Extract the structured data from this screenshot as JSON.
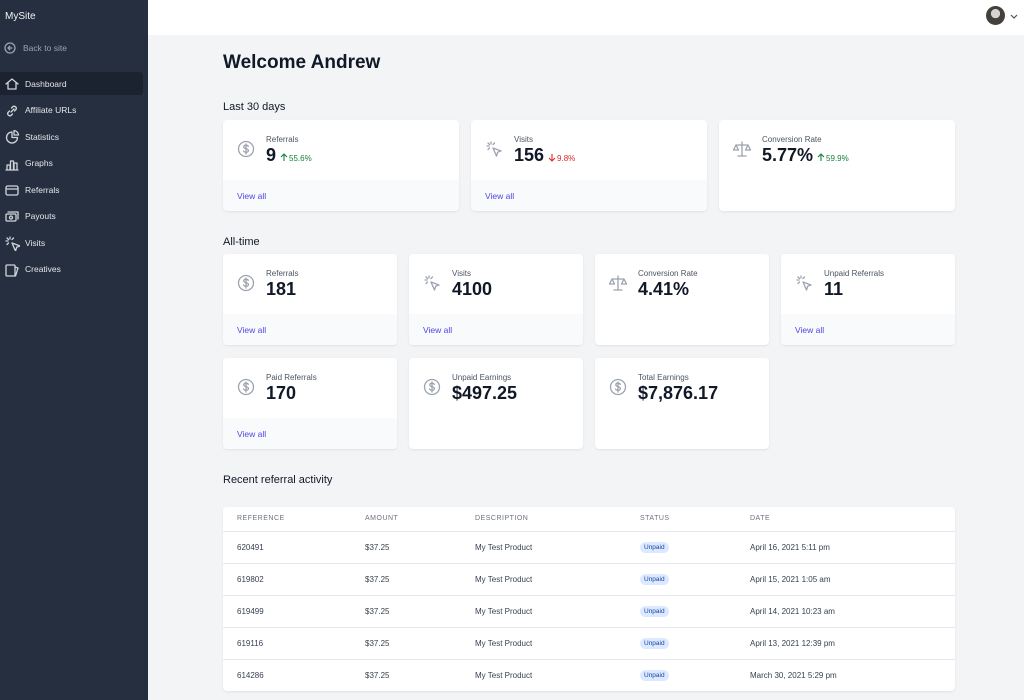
{
  "sidebar": {
    "site_name": "MySite",
    "back_link": "Back to site",
    "active_nav": 0,
    "nav": [
      {
        "label": "Dashboard",
        "icon": "home"
      },
      {
        "label": "Affiliate URLs",
        "icon": "link"
      },
      {
        "label": "Statistics",
        "icon": "pie"
      },
      {
        "label": "Graphs",
        "icon": "bars"
      },
      {
        "label": "Referrals",
        "icon": "card"
      },
      {
        "label": "Payouts",
        "icon": "cash"
      },
      {
        "label": "Visits",
        "icon": "cursor"
      },
      {
        "label": "Creatives",
        "icon": "image"
      }
    ]
  },
  "header": {
    "title": "Welcome Andrew"
  },
  "last_30_days": {
    "title": "Last 30 days",
    "cards": [
      {
        "label": "Referrals",
        "value": "9",
        "change": "55.6%",
        "trend": "up",
        "icon": "dollar",
        "link": "View all"
      },
      {
        "label": "Visits",
        "value": "156",
        "change": "9.8%",
        "trend": "down",
        "icon": "cursor",
        "link": "View all"
      },
      {
        "label": "Conversion Rate",
        "value": "5.77%",
        "change": "59.9%",
        "trend": "up",
        "icon": "scale"
      }
    ]
  },
  "all_time": {
    "title": "All-time",
    "cards": [
      {
        "label": "Referrals",
        "value": "181",
        "icon": "dollar",
        "link": "View all"
      },
      {
        "label": "Visits",
        "value": "4100",
        "icon": "cursor",
        "link": "View all"
      },
      {
        "label": "Conversion Rate",
        "value": "4.41%",
        "icon": "scale"
      },
      {
        "label": "Unpaid Referrals",
        "value": "11",
        "icon": "cursor",
        "link": "View all"
      },
      {
        "label": "Paid Referrals",
        "value": "170",
        "icon": "dollar",
        "link": "View all"
      },
      {
        "label": "Unpaid Earnings",
        "value": "$497.25",
        "icon": "dollar"
      },
      {
        "label": "Total Earnings",
        "value": "$7,876.17",
        "icon": "dollar"
      }
    ]
  },
  "recent": {
    "title": "Recent referral activity",
    "columns": [
      "REFERENCE",
      "AMOUNT",
      "DESCRIPTION",
      "STATUS",
      "DATE"
    ],
    "rows": [
      [
        "620491",
        "$37.25",
        "My Test Product",
        "Unpaid",
        "April 16, 2021 5:11 pm"
      ],
      [
        "619802",
        "$37.25",
        "My Test Product",
        "Unpaid",
        "April 15, 2021 1:05 am"
      ],
      [
        "619499",
        "$37.25",
        "My Test Product",
        "Unpaid",
        "April 14, 2021 10:23 am"
      ],
      [
        "619116",
        "$37.25",
        "My Test Product",
        "Unpaid",
        "April 13, 2021 12:39 pm"
      ],
      [
        "614286",
        "$37.25",
        "My Test Product",
        "Unpaid",
        "March 30, 2021 5:29 pm"
      ]
    ]
  }
}
